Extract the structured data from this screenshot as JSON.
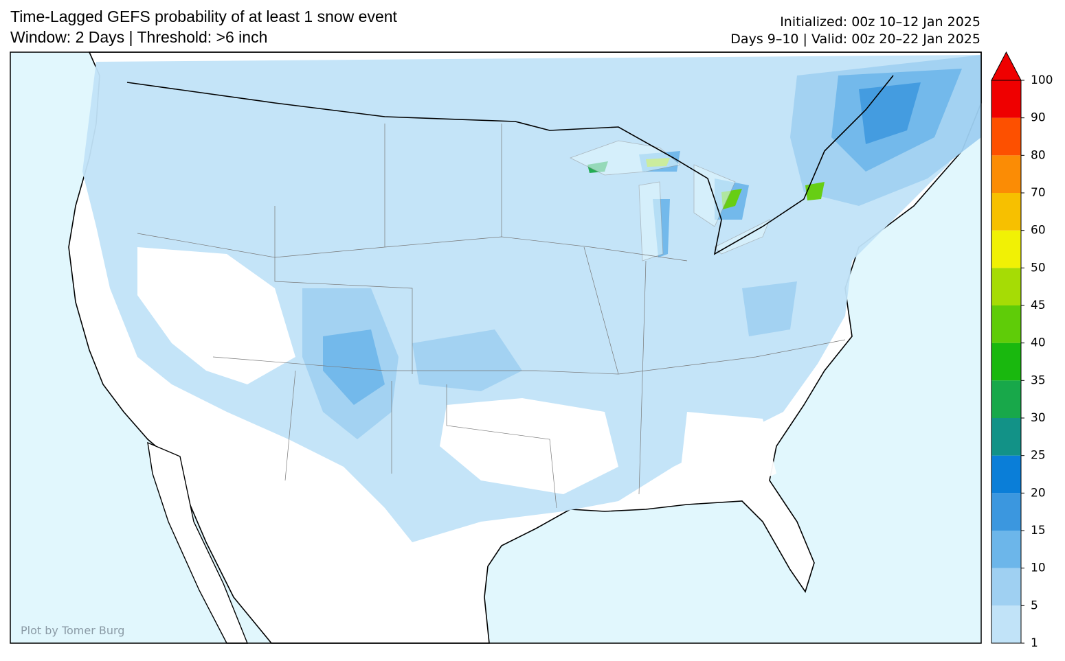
{
  "header": {
    "title": "Time-Lagged GEFS probability of at least 1 snow event",
    "subtitle": "Window: 2 Days | Threshold: >6 inch",
    "initialized": "Initialized: 00z 10–12 Jan 2025",
    "valid": "Days 9–10 | Valid: 00z 20–22 Jan 2025"
  },
  "credit": "Plot by Tomer Burg",
  "colorbar": {
    "levels": [
      1,
      5,
      10,
      15,
      20,
      25,
      30,
      35,
      40,
      45,
      50,
      60,
      70,
      80,
      90,
      100
    ],
    "colors": [
      "#c1e3f8",
      "#9fd0f2",
      "#6cb6ea",
      "#3b97df",
      "#0a7ed8",
      "#129287",
      "#18a84a",
      "#19b80e",
      "#5fcc08",
      "#a6dc05",
      "#f1f105",
      "#f7c000",
      "#fb8c05",
      "#fd5000",
      "#ef0000"
    ],
    "extend_color": "#ef0000"
  }
}
